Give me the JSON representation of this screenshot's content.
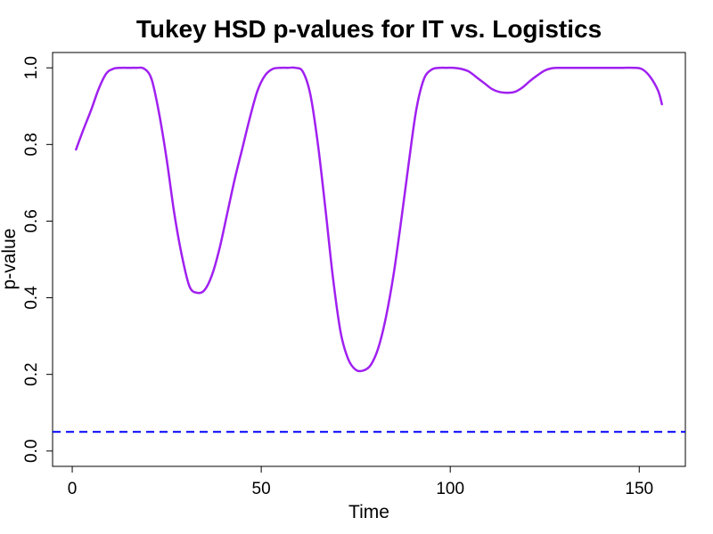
{
  "chart_data": {
    "type": "line",
    "title": "Tukey HSD p-values for IT vs. Logistics",
    "xlabel": "Time",
    "ylabel": "p-value",
    "xlim": [
      1,
      156
    ],
    "ylim": [
      0,
      1
    ],
    "x_ticks": [
      0,
      50,
      100,
      150
    ],
    "y_ticks": [
      0.0,
      0.2,
      0.4,
      0.6,
      0.8,
      1.0
    ],
    "grid": false,
    "legend": "none",
    "series": [
      {
        "color": "#A020F0",
        "points": [
          [
            1,
            0.787
          ],
          [
            3,
            0.84
          ],
          [
            5,
            0.89
          ],
          [
            7,
            0.945
          ],
          [
            9,
            0.985
          ],
          [
            11,
            0.998
          ],
          [
            13,
            1.0
          ],
          [
            15,
            1.0
          ],
          [
            17,
            1.0
          ],
          [
            19,
            0.998
          ],
          [
            21,
            0.97
          ],
          [
            23,
            0.88
          ],
          [
            25,
            0.76
          ],
          [
            27,
            0.62
          ],
          [
            29,
            0.51
          ],
          [
            31,
            0.43
          ],
          [
            33,
            0.413
          ],
          [
            35,
            0.42
          ],
          [
            37,
            0.46
          ],
          [
            39,
            0.53
          ],
          [
            41,
            0.62
          ],
          [
            43,
            0.71
          ],
          [
            45,
            0.79
          ],
          [
            47,
            0.87
          ],
          [
            49,
            0.94
          ],
          [
            51,
            0.98
          ],
          [
            53,
            0.997
          ],
          [
            55,
            1.0
          ],
          [
            57,
            1.0
          ],
          [
            59,
            1.0
          ],
          [
            61,
            0.99
          ],
          [
            63,
            0.93
          ],
          [
            65,
            0.8
          ],
          [
            67,
            0.63
          ],
          [
            69,
            0.45
          ],
          [
            71,
            0.31
          ],
          [
            73,
            0.24
          ],
          [
            75,
            0.212
          ],
          [
            77,
            0.21
          ],
          [
            79,
            0.225
          ],
          [
            81,
            0.27
          ],
          [
            83,
            0.35
          ],
          [
            85,
            0.46
          ],
          [
            87,
            0.6
          ],
          [
            89,
            0.75
          ],
          [
            91,
            0.89
          ],
          [
            93,
            0.97
          ],
          [
            95,
            0.995
          ],
          [
            97,
            1.0
          ],
          [
            99,
            1.0
          ],
          [
            101,
            1.0
          ],
          [
            103,
            0.997
          ],
          [
            105,
            0.99
          ],
          [
            107,
            0.975
          ],
          [
            109,
            0.96
          ],
          [
            111,
            0.945
          ],
          [
            113,
            0.937
          ],
          [
            115,
            0.935
          ],
          [
            117,
            0.937
          ],
          [
            119,
            0.948
          ],
          [
            121,
            0.965
          ],
          [
            123,
            0.98
          ],
          [
            125,
            0.993
          ],
          [
            127,
            0.999
          ],
          [
            129,
            1.0
          ],
          [
            135,
            1.0
          ],
          [
            140,
            1.0
          ],
          [
            145,
            1.0
          ],
          [
            149,
            1.0
          ],
          [
            151,
            0.995
          ],
          [
            153,
            0.975
          ],
          [
            155,
            0.94
          ],
          [
            156,
            0.905
          ]
        ]
      }
    ],
    "reference_lines": [
      {
        "y": 0.05,
        "color": "#0000FF",
        "style": "dashed"
      }
    ]
  }
}
